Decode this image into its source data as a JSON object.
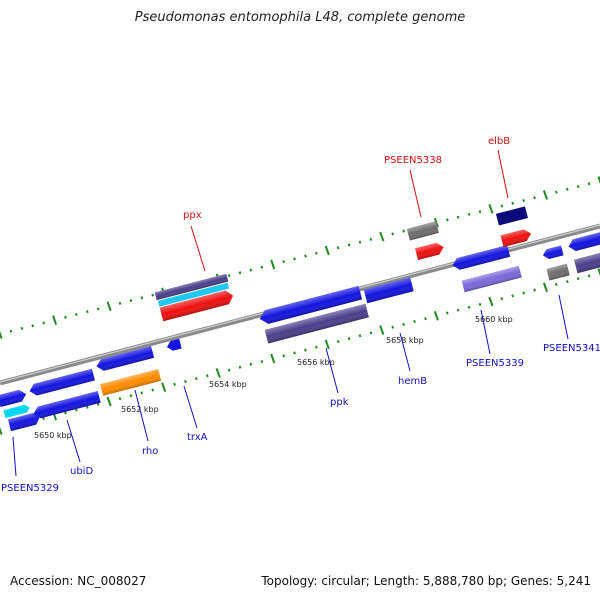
{
  "title": "Pseudomonas entomophila L48, complete genome",
  "accession_line": "Accession: NC_008027",
  "summary_line": "Topology: circular; Length: 5,888,780 bp; Genes: 5,241",
  "colors": {
    "backbone": "#8a8a8a",
    "tick": "#1f8a1f",
    "label_blue": "#1010c0",
    "label_red": "#d01010"
  },
  "scale_labels": [
    {
      "kbp": 5650,
      "text": "5650 kbp"
    },
    {
      "kbp": 5652,
      "text": "5652 kbp"
    },
    {
      "kbp": 5654,
      "text": "5654 kbp"
    },
    {
      "kbp": 5656,
      "text": "5656 kbp"
    },
    {
      "kbp": 5658,
      "text": "5658 kbp"
    },
    {
      "kbp": 5660,
      "text": "5660 kbp"
    }
  ],
  "gene_labels": [
    {
      "name": "PSEEN5329",
      "color": "blue"
    },
    {
      "name": "ubiD",
      "color": "blue"
    },
    {
      "name": "rho",
      "color": "blue"
    },
    {
      "name": "trxA",
      "color": "blue"
    },
    {
      "name": "ppk",
      "color": "blue"
    },
    {
      "name": "hemB",
      "color": "blue"
    },
    {
      "name": "PSEEN5339",
      "color": "blue"
    },
    {
      "name": "PSEEN5341",
      "color": "blue"
    },
    {
      "name": "ppx",
      "color": "red"
    },
    {
      "name": "PSEEN5338",
      "color": "red"
    },
    {
      "name": "elbB",
      "color": "red"
    }
  ],
  "features": [
    {
      "id": "f1",
      "color": "#1414e0"
    },
    {
      "id": "f2",
      "color": "#00d8f0"
    },
    {
      "id": "f3",
      "color": "#1414e0"
    },
    {
      "id": "f4",
      "color": "#1414e0"
    },
    {
      "id": "f5",
      "color": "#1414e0"
    },
    {
      "id": "f6",
      "color": "#ff8c00"
    },
    {
      "id": "f7",
      "color": "#1414e0"
    },
    {
      "id": "f8",
      "color": "#4b3f8c"
    },
    {
      "id": "f9",
      "color": "#1ec8f0"
    },
    {
      "id": "f10",
      "color": "#ee1010"
    },
    {
      "id": "f11",
      "color": "#1414e0"
    },
    {
      "id": "f12",
      "color": "#4b3f8c"
    },
    {
      "id": "f13",
      "color": "#1414e0"
    },
    {
      "id": "f14",
      "color": "#1414e0"
    },
    {
      "id": "f15",
      "color": "#6e6e6e"
    },
    {
      "id": "f16",
      "color": "#ee1010"
    },
    {
      "id": "f17",
      "color": "#1414e0"
    },
    {
      "id": "f18",
      "color": "#7b68d8"
    },
    {
      "id": "f19",
      "color": "#0a0a7a"
    },
    {
      "id": "f20",
      "color": "#ee1010"
    },
    {
      "id": "f21",
      "color": "#1414e0"
    },
    {
      "id": "f22",
      "color": "#6e6e6e"
    },
    {
      "id": "f23",
      "color": "#1414e0"
    },
    {
      "id": "f24",
      "color": "#4b3f8c"
    }
  ]
}
